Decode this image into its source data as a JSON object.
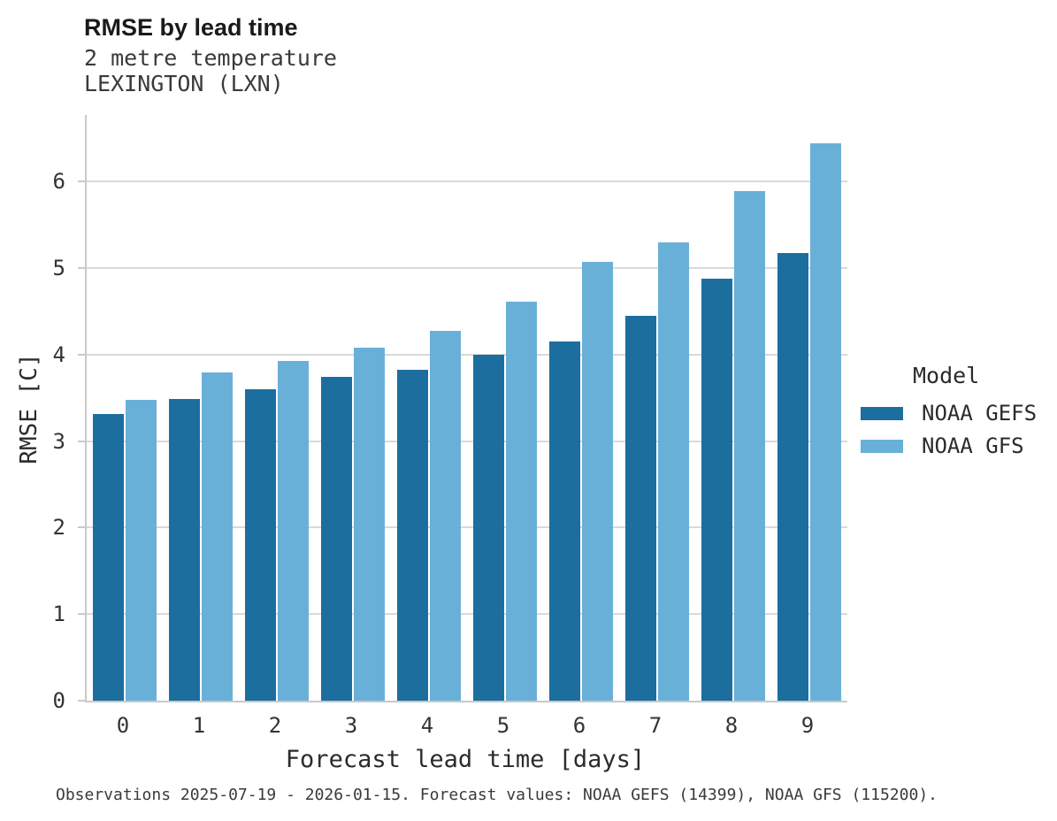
{
  "header": {
    "title": "RMSE by lead time",
    "subtitle_line1": "2 metre temperature",
    "subtitle_line2": "LEXINGTON (LXN)"
  },
  "axes": {
    "x_title": "Forecast lead time [days]",
    "y_title": "RMSE [C]"
  },
  "legend": {
    "title": "Model",
    "items": [
      {
        "label": "NOAA GEFS",
        "color": "#1C6E9F"
      },
      {
        "label": "NOAA GFS",
        "color": "#69B0D8"
      }
    ]
  },
  "caption": "Observations 2025-07-19 - 2026-01-15. Forecast values: NOAA GEFS (14399), NOAA GFS (115200).",
  "chart_data": {
    "type": "bar",
    "title": "RMSE by lead time",
    "subtitle": [
      "2 metre temperature",
      "LEXINGTON (LXN)"
    ],
    "xlabel": "Forecast lead time [days]",
    "ylabel": "RMSE [C]",
    "categories": [
      "0",
      "1",
      "2",
      "3",
      "4",
      "5",
      "6",
      "7",
      "8",
      "9"
    ],
    "series": [
      {
        "name": "NOAA GEFS",
        "color": "#1C6E9F",
        "values": [
          3.31,
          3.49,
          3.6,
          3.74,
          3.82,
          4.0,
          4.15,
          4.45,
          4.88,
          5.17
        ]
      },
      {
        "name": "NOAA GFS",
        "color": "#69B0D8",
        "values": [
          3.48,
          3.79,
          3.93,
          4.08,
          4.27,
          4.61,
          5.07,
          5.3,
          5.89,
          6.44
        ]
      }
    ],
    "yticks": [
      0,
      1,
      2,
      3,
      4,
      5,
      6
    ],
    "ylim": [
      0,
      6.77
    ],
    "grid": true,
    "grid_color": "#d9d9d9",
    "legend_position": "right"
  }
}
